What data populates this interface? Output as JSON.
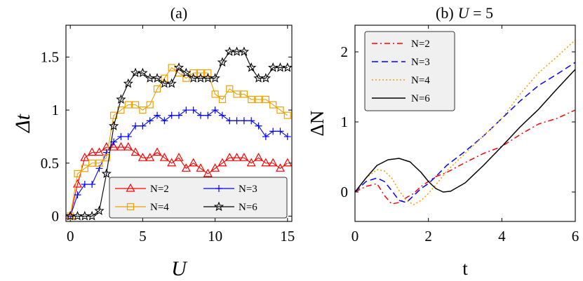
{
  "figure": {
    "panel_a_title": "(a)",
    "panel_b_title_prefix": "(b)",
    "panel_b_title_var": "U",
    "panel_b_title_suffix": " = 5"
  },
  "chart_data": [
    {
      "id": "a",
      "type": "line",
      "title": "(a)",
      "xlabel": "U",
      "ylabel": "Δt",
      "xlim": [
        -0.3,
        15.3
      ],
      "ylim": [
        -0.05,
        1.8
      ],
      "xticks": [
        0,
        5,
        10,
        15
      ],
      "xtick_labels": [
        "0",
        "5",
        "10",
        "15"
      ],
      "yticks": [
        0,
        0.5,
        1,
        1.5
      ],
      "ytick_labels": [
        "0",
        "0.5",
        "1",
        "1.5"
      ],
      "legend": {
        "placement": "bottom-right",
        "columns": 2
      },
      "series": [
        {
          "name": "N=2",
          "color": "#ff0000",
          "marker": "triangle",
          "x": [
            0,
            0.5,
            1,
            1.5,
            2,
            2.5,
            3,
            3.5,
            4,
            4.5,
            5,
            5.5,
            6,
            6.5,
            7,
            7.5,
            8,
            8.5,
            9,
            9.5,
            10,
            10.5,
            11,
            11.5,
            12,
            12.5,
            13,
            13.5,
            14,
            14.5,
            15
          ],
          "values": [
            0,
            0.3,
            0.55,
            0.6,
            0.6,
            0.65,
            0.65,
            0.65,
            0.65,
            0.6,
            0.55,
            0.55,
            0.6,
            0.55,
            0.5,
            0.55,
            0.45,
            0.5,
            0.45,
            0.4,
            0.45,
            0.5,
            0.55,
            0.55,
            0.55,
            0.5,
            0.55,
            0.5,
            0.5,
            0.45,
            0.5
          ]
        },
        {
          "name": "N=3",
          "color": "#0000ff",
          "marker": "plus",
          "x": [
            0,
            0.5,
            1,
            1.5,
            2,
            2.5,
            3,
            3.5,
            4,
            4.5,
            5,
            5.5,
            6,
            6.5,
            7,
            7.5,
            8,
            8.5,
            9,
            9.5,
            10,
            10.5,
            11,
            11.5,
            12,
            12.5,
            13,
            13.5,
            14,
            14.5,
            15
          ],
          "values": [
            0,
            0.2,
            0.3,
            0.3,
            0.45,
            0.6,
            0.7,
            0.75,
            0.75,
            0.85,
            0.85,
            0.9,
            0.95,
            0.9,
            0.95,
            0.95,
            1.0,
            1.0,
            0.95,
            0.95,
            1.0,
            0.95,
            0.9,
            0.9,
            0.9,
            0.9,
            0.85,
            0.75,
            0.8,
            0.8,
            0.75
          ]
        },
        {
          "name": "N=4",
          "color": "#f0a000",
          "marker": "square",
          "x": [
            0,
            0.5,
            1,
            1.5,
            2,
            2.5,
            3,
            3.5,
            4,
            4.5,
            5,
            5.5,
            6,
            6.5,
            7,
            7.5,
            8,
            8.5,
            9,
            9.5,
            10,
            10.5,
            11,
            11.5,
            12,
            12.5,
            13,
            13.5,
            14,
            14.5,
            15
          ],
          "values": [
            0,
            0.4,
            0.45,
            0.5,
            0.5,
            0.55,
            0.95,
            1.0,
            1.05,
            1.05,
            1.0,
            1.05,
            1.2,
            1.3,
            1.4,
            1.35,
            1.3,
            1.35,
            1.35,
            1.35,
            1.15,
            1.1,
            1.2,
            1.15,
            1.15,
            1.1,
            1.1,
            1.1,
            1.05,
            1.0,
            0.95
          ]
        },
        {
          "name": "N=6",
          "color": "#000000",
          "marker": "star",
          "x": [
            0,
            0.5,
            1,
            1.5,
            2,
            2.5,
            3,
            3.5,
            4,
            4.5,
            5,
            5.5,
            6,
            6.5,
            7,
            7.5,
            8,
            8.5,
            9,
            9.5,
            10,
            10.5,
            11,
            11.5,
            12,
            12.5,
            13,
            13.5,
            14,
            14.5,
            15
          ],
          "values": [
            0,
            0,
            0,
            0,
            0.05,
            0.4,
            0.85,
            1.1,
            1.25,
            1.35,
            1.35,
            1.3,
            1.3,
            1.25,
            1.25,
            1.4,
            1.35,
            1.3,
            1.3,
            1.3,
            1.3,
            1.45,
            1.55,
            1.55,
            1.55,
            1.4,
            1.3,
            1.3,
            1.4,
            1.4,
            1.4
          ]
        }
      ]
    },
    {
      "id": "b",
      "type": "line",
      "title": "(b) U = 5",
      "xlabel": "t",
      "ylabel": "ΔN",
      "xlim": [
        0,
        6
      ],
      "ylim": [
        -0.42,
        2.38
      ],
      "xticks": [
        0,
        2,
        4,
        6
      ],
      "xtick_labels": [
        "0",
        "2",
        "4",
        "6"
      ],
      "yticks": [
        0,
        1,
        2
      ],
      "ytick_labels": [
        "0",
        "1",
        "2"
      ],
      "legend": {
        "placement": "top-left",
        "columns": 1
      },
      "series": [
        {
          "name": "N=2",
          "color": "#ff0000",
          "style": "dashdot",
          "x": [
            0,
            0.3,
            0.6,
            0.8,
            1.0,
            1.2,
            1.4,
            1.6,
            1.8,
            2.0,
            2.2,
            2.5,
            3.0,
            3.5,
            4.0,
            4.5,
            5.0,
            5.5,
            6.0
          ],
          "values": [
            0,
            0.08,
            0.12,
            -0.05,
            -0.17,
            -0.15,
            -0.08,
            -0.02,
            0.08,
            0.15,
            0.22,
            0.28,
            0.42,
            0.55,
            0.65,
            0.82,
            0.97,
            1.05,
            1.17
          ]
        },
        {
          "name": "N=3",
          "color": "#0000ff",
          "style": "dashed",
          "x": [
            0,
            0.3,
            0.6,
            0.8,
            1.0,
            1.2,
            1.4,
            1.6,
            1.8,
            2.0,
            2.2,
            2.5,
            3.0,
            3.5,
            4.0,
            4.5,
            5.0,
            5.5,
            6.0
          ],
          "values": [
            0,
            0.15,
            0.2,
            0.15,
            0.02,
            -0.12,
            -0.15,
            -0.05,
            0.05,
            0.12,
            0.22,
            0.38,
            0.58,
            0.8,
            1.05,
            1.3,
            1.52,
            1.68,
            1.85
          ]
        },
        {
          "name": "N=4",
          "color": "#f0a000",
          "style": "dotted",
          "x": [
            0,
            0.3,
            0.6,
            0.8,
            1.0,
            1.2,
            1.4,
            1.6,
            1.8,
            2.0,
            2.2,
            2.5,
            3.0,
            3.5,
            4.0,
            4.5,
            5.0,
            5.5,
            6.0
          ],
          "values": [
            0,
            0.2,
            0.32,
            0.3,
            0.2,
            0.02,
            -0.12,
            -0.18,
            -0.12,
            -0.02,
            0.1,
            0.3,
            0.55,
            0.8,
            1.05,
            1.4,
            1.7,
            1.93,
            2.17
          ]
        },
        {
          "name": "N=6",
          "color": "#000000",
          "style": "solid",
          "x": [
            0,
            0.3,
            0.6,
            0.9,
            1.2,
            1.5,
            1.8,
            2.0,
            2.2,
            2.4,
            2.6,
            3.0,
            3.5,
            4.0,
            4.5,
            5.0,
            5.5,
            6.0
          ],
          "values": [
            0,
            0.2,
            0.38,
            0.46,
            0.48,
            0.43,
            0.28,
            0.15,
            0.05,
            0.0,
            0.01,
            0.13,
            0.38,
            0.65,
            0.93,
            1.18,
            1.47,
            1.75
          ]
        }
      ]
    }
  ]
}
